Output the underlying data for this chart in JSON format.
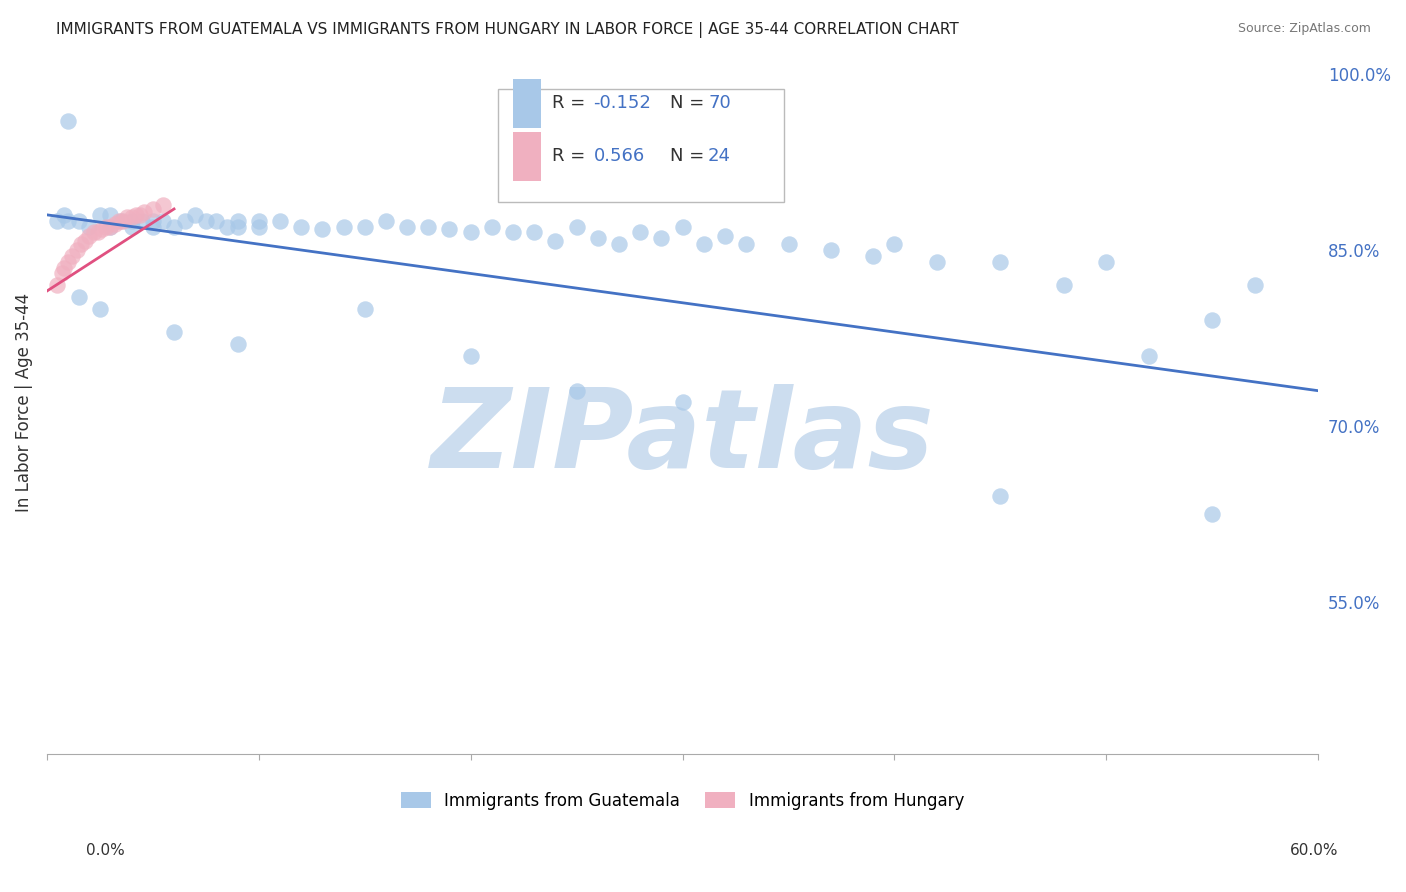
{
  "title": "IMMIGRANTS FROM GUATEMALA VS IMMIGRANTS FROM HUNGARY IN LABOR FORCE | AGE 35-44 CORRELATION CHART",
  "source": "Source: ZipAtlas.com",
  "ylabel": "In Labor Force | Age 35-44",
  "xlim": [
    0.0,
    0.6
  ],
  "ylim": [
    0.42,
    1.02
  ],
  "yticks": [
    1.0,
    0.85,
    0.7,
    0.55
  ],
  "ytick_labels": [
    "100.0%",
    "85.0%",
    "70.0%",
    "55.0%"
  ],
  "legend_R1": "R = ",
  "legend_R1_val": "-0.152",
  "legend_N1": "N = ",
  "legend_N1_val": "70",
  "legend_R2": "R = ",
  "legend_R2_val": "0.566",
  "legend_N2": "N = ",
  "legend_N2_val": "24",
  "legend_label1": "Immigrants from Guatemala",
  "legend_label2": "Immigrants from Hungary",
  "color_guatemala": "#a8c8e8",
  "color_hungary": "#f0b0c0",
  "color_line_guatemala": "#4472c4",
  "color_line_hungary": "#e05080",
  "watermark": "ZIPatlas",
  "watermark_color": "#ccddef",
  "grid_color": "#c8d4e4",
  "background": "#ffffff",
  "accent_color": "#4472c4",
  "guatemala_x": [
    0.005,
    0.008,
    0.01,
    0.01,
    0.015,
    0.02,
    0.025,
    0.03,
    0.03,
    0.035,
    0.04,
    0.04,
    0.045,
    0.05,
    0.05,
    0.055,
    0.06,
    0.065,
    0.07,
    0.075,
    0.08,
    0.085,
    0.09,
    0.09,
    0.1,
    0.1,
    0.11,
    0.12,
    0.13,
    0.14,
    0.15,
    0.16,
    0.17,
    0.18,
    0.19,
    0.2,
    0.21,
    0.22,
    0.23,
    0.24,
    0.25,
    0.26,
    0.27,
    0.28,
    0.29,
    0.3,
    0.31,
    0.32,
    0.33,
    0.35,
    0.37,
    0.39,
    0.4,
    0.42,
    0.45,
    0.48,
    0.5,
    0.52,
    0.55,
    0.57,
    0.015,
    0.025,
    0.06,
    0.09,
    0.15,
    0.2,
    0.25,
    0.3,
    0.45,
    0.55
  ],
  "guatemala_y": [
    0.875,
    0.88,
    0.875,
    0.96,
    0.875,
    0.87,
    0.88,
    0.87,
    0.88,
    0.875,
    0.87,
    0.875,
    0.875,
    0.875,
    0.87,
    0.875,
    0.87,
    0.875,
    0.88,
    0.875,
    0.875,
    0.87,
    0.87,
    0.875,
    0.87,
    0.875,
    0.875,
    0.87,
    0.868,
    0.87,
    0.87,
    0.875,
    0.87,
    0.87,
    0.868,
    0.865,
    0.87,
    0.865,
    0.865,
    0.858,
    0.87,
    0.86,
    0.855,
    0.865,
    0.86,
    0.87,
    0.855,
    0.862,
    0.855,
    0.855,
    0.85,
    0.845,
    0.855,
    0.84,
    0.84,
    0.82,
    0.84,
    0.76,
    0.79,
    0.82,
    0.81,
    0.8,
    0.78,
    0.77,
    0.8,
    0.76,
    0.73,
    0.72,
    0.64,
    0.625
  ],
  "hungary_x": [
    0.005,
    0.007,
    0.008,
    0.01,
    0.012,
    0.014,
    0.016,
    0.018,
    0.02,
    0.022,
    0.024,
    0.026,
    0.028,
    0.03,
    0.032,
    0.034,
    0.036,
    0.038,
    0.04,
    0.042,
    0.044,
    0.046,
    0.05,
    0.055
  ],
  "hungary_y": [
    0.82,
    0.83,
    0.835,
    0.84,
    0.845,
    0.85,
    0.855,
    0.858,
    0.862,
    0.865,
    0.865,
    0.868,
    0.87,
    0.87,
    0.872,
    0.875,
    0.875,
    0.878,
    0.878,
    0.88,
    0.88,
    0.882,
    0.885,
    0.888
  ],
  "guat_line_x": [
    0.0,
    0.6
  ],
  "guat_line_y": [
    0.88,
    0.73
  ],
  "hung_line_x": [
    0.0,
    0.06
  ],
  "hung_line_y": [
    0.815,
    0.885
  ]
}
